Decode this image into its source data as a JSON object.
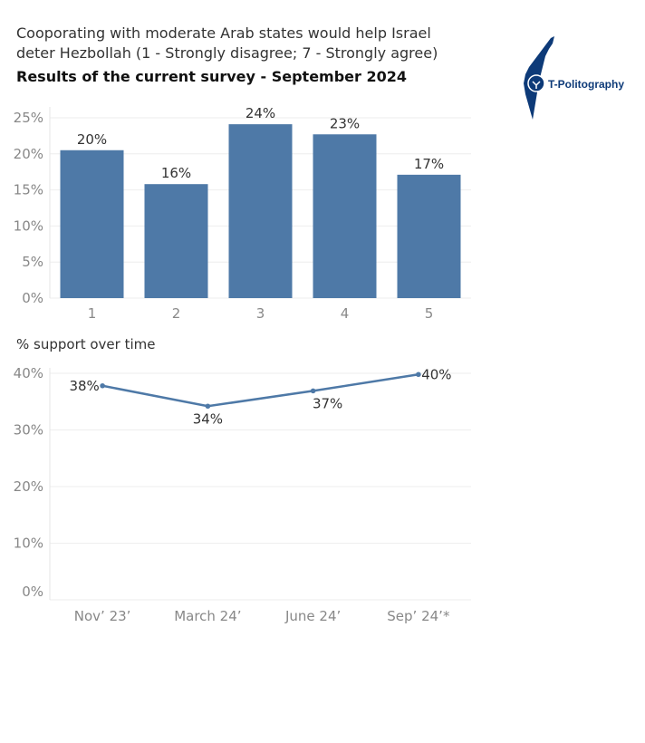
{
  "title": "Cooporating with moderate Arab states would help Israel deter Hezbollah (1 - Strongly disagree; 7 - Strongly agree)",
  "subtitle": "Results of the current survey - September 2024",
  "logo": {
    "text": "T-Politography",
    "icon": "israel-map-logo",
    "color": "#0d3a78"
  },
  "chart_data": [
    {
      "type": "bar",
      "categories": [
        "1",
        "2",
        "3",
        "4",
        "5"
      ],
      "values": [
        20.5,
        15.8,
        24.1,
        22.7,
        17.1
      ],
      "labels": [
        "20%",
        "16%",
        "24%",
        "23%",
        "17%"
      ],
      "yticks": [
        "0%",
        "5%",
        "10%",
        "15%",
        "20%",
        "25%"
      ],
      "ytick_values": [
        0,
        5,
        10,
        15,
        20,
        25
      ],
      "ylim": [
        0,
        26.5
      ],
      "color": "#4e79a7",
      "grid": true
    },
    {
      "type": "line",
      "title": "% support over time",
      "categories": [
        "Nov’ 23’",
        "March 24’",
        "June 24’",
        "Sep’ 24’*"
      ],
      "values": [
        37.8,
        34.2,
        36.9,
        39.8
      ],
      "labels": [
        "38%",
        "34%",
        "37%",
        "40%"
      ],
      "yticks": [
        "0%",
        "10%",
        "20%",
        "30%",
        "40%"
      ],
      "ytick_values": [
        0,
        10,
        20,
        30,
        40
      ],
      "ylim": [
        0,
        40
      ],
      "color": "#4e79a7",
      "grid": true
    }
  ]
}
